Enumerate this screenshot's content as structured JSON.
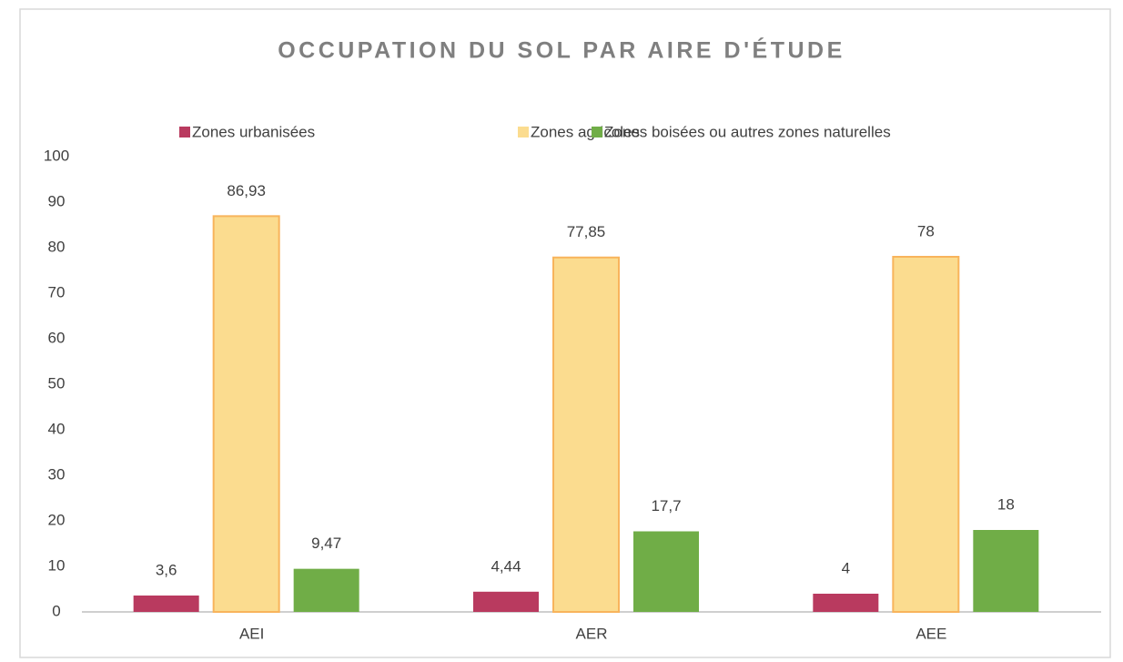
{
  "chart_data": {
    "type": "bar",
    "title": "OCCUPATION DU SOL PAR AIRE D'ÉTUDE",
    "categories": [
      "AEI",
      "AER",
      "AEE"
    ],
    "series": [
      {
        "name": "Zones urbanisées",
        "color": "#b93a5f",
        "values": [
          3.6,
          4.44,
          4
        ],
        "value_labels": [
          "3,6",
          "4,44",
          "4"
        ]
      },
      {
        "name": "Zones agricoles",
        "color": "#fbdc8f",
        "values": [
          86.93,
          77.85,
          78
        ],
        "value_labels": [
          "86,93",
          "77,85",
          "78"
        ]
      },
      {
        "name": "Zones boisées ou autres zones naturelles",
        "color": "#70ad47",
        "values": [
          9.47,
          17.7,
          18
        ],
        "value_labels": [
          "9,47",
          "17,7",
          "18"
        ]
      }
    ],
    "ylim": [
      0,
      100
    ],
    "yticks": [
      0,
      10,
      20,
      30,
      40,
      50,
      60,
      70,
      80,
      90,
      100
    ],
    "grid": false,
    "legend": "top"
  }
}
